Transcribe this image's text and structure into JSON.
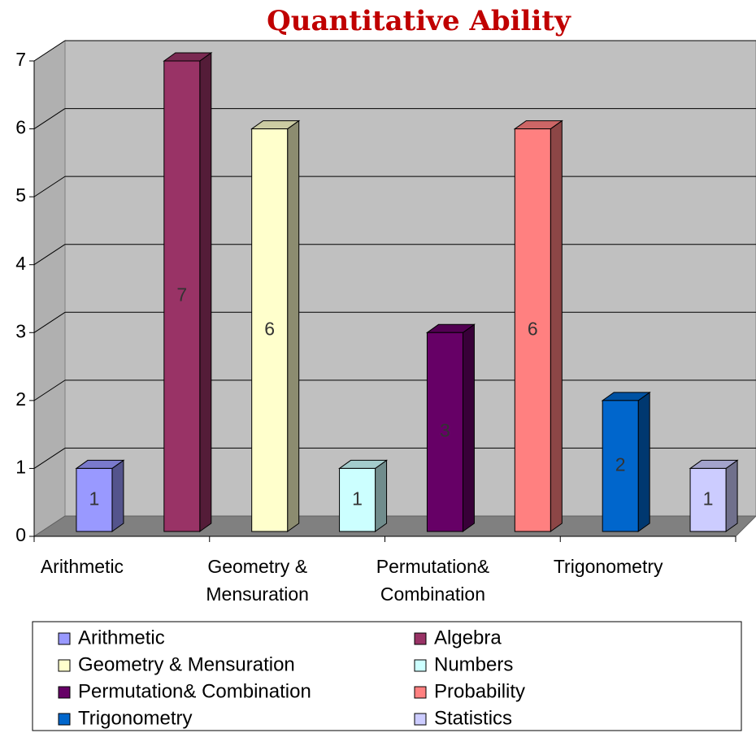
{
  "chart_data": {
    "type": "bar3d",
    "title": "Quantitative Ability",
    "categories": [
      "Arithmetic",
      "Algebra",
      "Geometry & Mensuration",
      "Numbers",
      "Permutation& Combination",
      "Probability",
      "Trigonometry",
      "Statistics"
    ],
    "values": [
      1,
      7,
      6,
      1,
      3,
      6,
      2,
      1
    ],
    "colors": [
      "#9999ff",
      "#993366",
      "#ffffcc",
      "#ccffff",
      "#660066",
      "#ff8080",
      "#0066cc",
      "#ccccff"
    ],
    "ylim": [
      0,
      7
    ],
    "yticks": [
      0,
      1,
      2,
      3,
      4,
      5,
      6,
      7
    ],
    "grid": true,
    "xtick_label_step": 2,
    "legend": "bottom"
  }
}
